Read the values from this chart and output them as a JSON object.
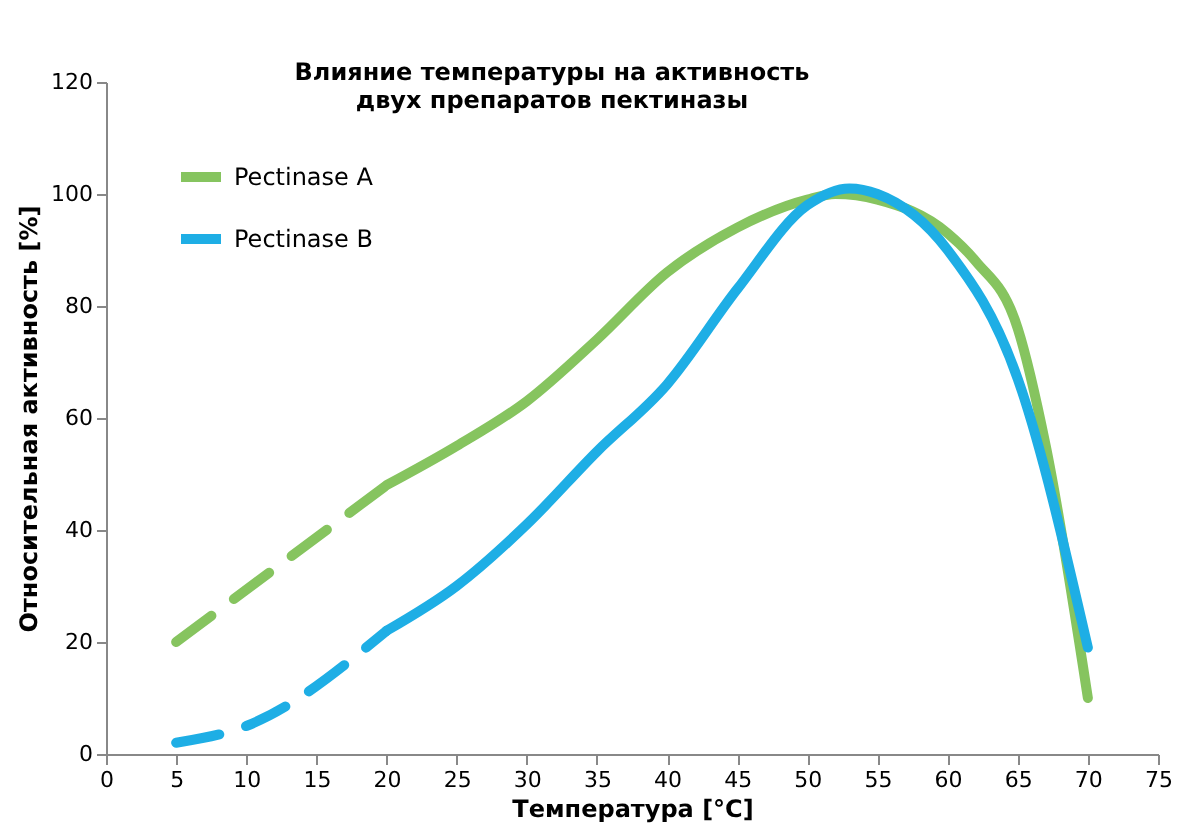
{
  "chart_data": {
    "type": "line",
    "title": [
      "Влияние температуры на активность",
      "двух препаратов пектиназы"
    ],
    "xlabel": "Температура [°C]",
    "ylabel": "Относительная активность [%]",
    "xlim": [
      0,
      75
    ],
    "xticks": [
      0,
      5,
      10,
      15,
      20,
      25,
      30,
      35,
      40,
      45,
      50,
      55,
      60,
      65,
      70,
      75
    ],
    "ylim": [
      0,
      120
    ],
    "yticks": [
      0,
      20,
      40,
      60,
      80,
      100,
      120
    ],
    "grid": false,
    "legend": "top left",
    "series": [
      {
        "name": "Pectinase A",
        "color": "#86c45f",
        "line_style": "solid",
        "x": [
          20,
          25,
          30,
          35,
          40,
          45,
          50,
          52,
          55,
          60,
          62,
          65,
          67,
          70
        ],
        "values": [
          48,
          55,
          63,
          74,
          86,
          94,
          99,
          100,
          99,
          93,
          88,
          76,
          55,
          10
        ]
      },
      {
        "name": "Pectinase B",
        "color": "#1eaee5",
        "line_style": "solid",
        "x": [
          20,
          25,
          30,
          35,
          40,
          45,
          50,
          53,
          55,
          60,
          65,
          70
        ],
        "values": [
          22,
          30,
          41,
          54,
          66,
          83,
          98,
          101,
          100,
          90,
          67,
          19
        ]
      },
      {
        "color": "#86c45f",
        "line_style": "dashed",
        "x": [
          5,
          20
        ],
        "values": [
          20,
          48
        ]
      },
      {
        "color": "#1eaee5",
        "line_style": "dashed",
        "x": [
          5,
          10,
          20
        ],
        "values": [
          2,
          5,
          22
        ]
      }
    ]
  }
}
